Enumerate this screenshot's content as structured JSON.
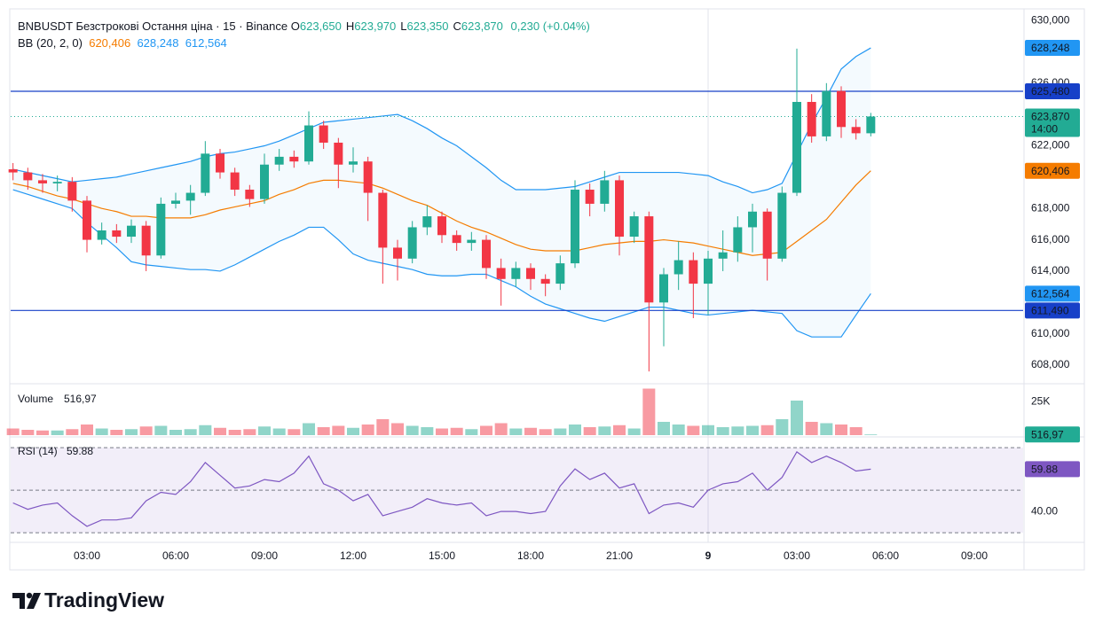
{
  "chart_data": {
    "type": "candlestick",
    "title": "BNBUSDT Безстрокові Остання ціна · 15 · Binance",
    "ohlc": [
      {
        "key": "O",
        "value": 623.65,
        "label": "623,650"
      },
      {
        "key": "H",
        "value": 623.97,
        "label": "623,970"
      },
      {
        "key": "L",
        "value": 623.35,
        "label": "623,350"
      },
      {
        "key": "C",
        "value": 623.87,
        "label": "623,870"
      }
    ],
    "change": {
      "value": 0.23,
      "label": "0,230"
    },
    "change_pct": {
      "value": 0.04,
      "label": "(+0.04%)"
    },
    "xlim": [
      0.42,
      34.65
    ],
    "ylim": [
      606.87,
      630.74
    ],
    "xticks": [
      {
        "value": 3,
        "label": "03:00"
      },
      {
        "value": 6,
        "label": "06:00"
      },
      {
        "value": 9,
        "label": "09:00"
      },
      {
        "value": 12,
        "label": "12:00"
      },
      {
        "value": 15,
        "label": "15:00"
      },
      {
        "value": 18,
        "label": "18:00"
      },
      {
        "value": 21,
        "label": "21:00"
      },
      {
        "value": 24,
        "label": "9",
        "bold": true
      },
      {
        "value": 27,
        "label": "03:00"
      },
      {
        "value": 30,
        "label": "06:00"
      },
      {
        "value": 33,
        "label": "09:00"
      }
    ],
    "yticks": [
      {
        "value": 630,
        "label": "630,000"
      },
      {
        "value": 626,
        "label": "626,000"
      },
      {
        "value": 622,
        "label": "622,000"
      },
      {
        "value": 618,
        "label": "618,000"
      },
      {
        "value": 616,
        "label": "616,000"
      },
      {
        "value": 614,
        "label": "614,000"
      },
      {
        "value": 610,
        "label": "610,000"
      },
      {
        "value": 608,
        "label": "608,000"
      }
    ],
    "up_color": "#22ab94",
    "down_color": "#f23645",
    "candles": {
      "x": [
        0.5,
        1,
        1.5,
        2,
        2.5,
        3,
        3.5,
        4,
        4.5,
        5,
        5.5,
        6,
        6.5,
        7,
        7.5,
        8,
        8.5,
        9,
        9.5,
        10,
        10.5,
        11,
        11.5,
        12,
        12.5,
        13,
        13.5,
        14,
        14.5,
        15,
        15.5,
        16,
        16.5,
        17,
        17.5,
        18,
        18.5,
        19,
        19.5,
        20,
        20.5,
        21,
        21.5,
        22,
        22.5,
        23,
        23.5,
        24,
        24.5,
        25,
        25.5,
        26,
        26.5,
        27,
        27.5,
        28,
        28.5,
        29,
        29.5
      ],
      "open": [
        620.5,
        620.3,
        619.8,
        619.6,
        619.7,
        618.5,
        616.0,
        616.6,
        616.2,
        616.9,
        615.0,
        618.3,
        618.5,
        619.0,
        621.5,
        620.3,
        619.2,
        618.6,
        620.8,
        621.3,
        621.0,
        623.3,
        622.2,
        620.8,
        621.0,
        619.0,
        615.5,
        614.8,
        616.8,
        617.5,
        616.3,
        615.8,
        616.0,
        614.2,
        613.5,
        614.2,
        613.5,
        613.2,
        614.5,
        619.2,
        618.3,
        619.8,
        616.2,
        617.5,
        612.0,
        613.8,
        614.7,
        613.2,
        614.8,
        615.2,
        616.8,
        617.8,
        614.8,
        619.0,
        624.8,
        622.6,
        625.5,
        623.2,
        622.8
      ],
      "high": [
        620.9,
        620.6,
        620.2,
        620.1,
        620.0,
        618.8,
        617.1,
        617.0,
        617.3,
        617.2,
        618.7,
        619.0,
        619.5,
        622.3,
        621.8,
        620.6,
        619.5,
        621.5,
        621.8,
        621.7,
        624.2,
        623.6,
        622.5,
        621.9,
        621.3,
        619.2,
        616.0,
        617.2,
        618.2,
        617.8,
        616.6,
        616.5,
        616.3,
        614.8,
        614.6,
        614.5,
        613.8,
        615.0,
        619.8,
        619.6,
        620.4,
        620.1,
        617.8,
        617.8,
        614.2,
        615.9,
        615.2,
        615.3,
        616.6,
        617.5,
        618.3,
        618.0,
        619.4,
        628.2,
        625.3,
        626.0,
        625.8,
        623.7,
        624.1
      ],
      "low": [
        619.8,
        619.2,
        619.0,
        619.1,
        617.8,
        615.2,
        615.7,
        615.8,
        615.8,
        614.0,
        614.8,
        618.0,
        617.6,
        618.8,
        619.9,
        618.8,
        618.1,
        618.3,
        620.4,
        620.6,
        620.8,
        621.8,
        619.3,
        620.3,
        617.2,
        613.2,
        613.4,
        614.5,
        616.3,
        615.8,
        615.3,
        615.3,
        613.5,
        611.8,
        613.0,
        612.8,
        612.4,
        612.8,
        614.2,
        617.5,
        617.8,
        615.0,
        615.8,
        607.6,
        609.2,
        612.8,
        611.0,
        611.2,
        614.0,
        614.6,
        615.2,
        613.4,
        614.6,
        618.8,
        622.2,
        622.3,
        622.5,
        622.4,
        622.6
      ],
      "close": [
        620.3,
        619.8,
        619.6,
        619.7,
        618.5,
        616.0,
        616.6,
        616.2,
        616.9,
        615.0,
        618.3,
        618.5,
        619.0,
        621.5,
        620.3,
        619.2,
        618.6,
        620.8,
        621.3,
        621.0,
        623.3,
        622.2,
        620.8,
        621.0,
        619.0,
        615.5,
        614.8,
        616.8,
        617.5,
        616.3,
        615.8,
        616.0,
        614.2,
        613.5,
        614.2,
        613.5,
        613.2,
        614.5,
        619.2,
        618.3,
        619.8,
        616.2,
        617.5,
        612.0,
        613.8,
        614.7,
        613.2,
        614.8,
        615.2,
        616.8,
        617.8,
        614.8,
        619.0,
        624.8,
        622.6,
        625.5,
        623.2,
        622.8,
        623.87
      ]
    },
    "last": {
      "value": 623.87,
      "label": "623,870",
      "countdown": "14:00"
    },
    "hlines": [
      {
        "value": 625.48,
        "label": "625,480",
        "color": "#1740c8"
      },
      {
        "value": 611.49,
        "label": "611,490",
        "color": "#1740c8"
      }
    ],
    "bb": {
      "label": "BB (20, 2, 0)",
      "basis": {
        "color": "#f57c00",
        "last": {
          "value": 620.406,
          "label": "620,406"
        },
        "values": [
          619.6,
          619.4,
          619.1,
          618.8,
          618.6,
          618.3,
          618.0,
          617.8,
          617.5,
          617.5,
          617.4,
          617.4,
          617.4,
          617.6,
          617.9,
          618.1,
          618.3,
          618.5,
          618.9,
          619.2,
          619.6,
          619.8,
          619.8,
          619.7,
          619.6,
          619.3,
          618.9,
          618.5,
          618.2,
          617.7,
          617.2,
          616.8,
          616.5,
          616.1,
          615.7,
          615.4,
          615.3,
          615.3,
          615.3,
          615.5,
          615.7,
          615.8,
          615.9,
          615.9,
          616.0,
          615.9,
          615.8,
          615.6,
          615.4,
          615.2,
          615.0,
          615.1,
          615.2,
          615.9,
          616.6,
          617.3,
          618.4,
          619.5,
          620.406
        ]
      },
      "upper": {
        "color": "#2196f3",
        "last": {
          "value": 628.248,
          "label": "628,248"
        },
        "values": [
          620.5,
          620.3,
          620.1,
          619.9,
          619.7,
          619.8,
          619.9,
          620.0,
          620.2,
          620.4,
          620.6,
          620.8,
          621.0,
          621.3,
          621.5,
          621.6,
          621.8,
          622.0,
          622.3,
          622.7,
          623.1,
          623.5,
          623.6,
          623.7,
          623.8,
          623.9,
          624.0,
          623.6,
          623.1,
          622.5,
          622.0,
          621.3,
          620.6,
          619.8,
          619.2,
          619.2,
          619.2,
          619.3,
          619.4,
          619.7,
          620.0,
          620.3,
          620.3,
          620.3,
          620.3,
          620.3,
          620.2,
          620.1,
          619.7,
          619.4,
          619.0,
          619.2,
          619.6,
          621.5,
          623.4,
          625.1,
          626.9,
          627.7,
          628.248
        ]
      },
      "lower": {
        "color": "#2196f3",
        "last": {
          "value": 612.564,
          "label": "612,564"
        },
        "values": [
          619.2,
          618.9,
          618.6,
          618.3,
          618.0,
          617.1,
          616.3,
          615.5,
          614.6,
          614.4,
          614.3,
          614.2,
          614.1,
          614.1,
          614.0,
          614.4,
          614.9,
          615.4,
          615.9,
          616.3,
          616.8,
          616.8,
          616.0,
          615.1,
          614.7,
          614.5,
          614.3,
          614.1,
          613.8,
          613.7,
          613.7,
          613.8,
          613.8,
          613.4,
          613.0,
          612.4,
          611.9,
          611.6,
          611.3,
          611.0,
          610.8,
          611.1,
          611.4,
          611.7,
          611.7,
          611.5,
          611.3,
          611.2,
          611.3,
          611.4,
          611.5,
          611.4,
          611.3,
          610.2,
          609.8,
          609.8,
          609.8,
          611.2,
          612.564
        ]
      }
    },
    "volume": {
      "label": "Volume",
      "current": {
        "value": 516.97,
        "label": "516,97"
      },
      "ylim": [
        0,
        38000
      ],
      "yticks": [
        {
          "value": 25000,
          "label": "25K"
        }
      ],
      "values": [
        5000,
        4000,
        3500,
        3500,
        4500,
        8000,
        5000,
        4000,
        4500,
        6500,
        7000,
        4000,
        4500,
        7500,
        5500,
        4000,
        4500,
        6500,
        5000,
        4500,
        9000,
        6000,
        7000,
        5500,
        8000,
        12000,
        9000,
        7000,
        6000,
        5000,
        5500,
        4500,
        7000,
        9000,
        5000,
        5500,
        4500,
        5000,
        8000,
        6000,
        6500,
        7500,
        5000,
        35000,
        10000,
        8000,
        7000,
        7500,
        6000,
        6500,
        7000,
        7500,
        12000,
        26000,
        10000,
        9000,
        8000,
        6000,
        516.97
      ]
    },
    "rsi": {
      "label": "RSI (14)",
      "color": "#7e57c2",
      "ylim": [
        26.3,
        74.2
      ],
      "yticks": [
        {
          "value": 40,
          "label": "40.00"
        }
      ],
      "levels": [
        30,
        50,
        70
      ],
      "values": [
        44,
        41,
        43,
        44,
        38,
        33,
        36,
        36,
        37,
        45,
        49,
        48,
        54,
        63,
        57,
        51,
        52,
        55,
        54,
        58,
        66,
        53,
        50,
        45,
        48,
        38,
        40,
        42,
        46,
        44,
        43,
        44,
        38,
        40,
        40,
        39,
        40,
        52,
        60,
        55,
        58,
        51,
        53,
        39,
        43,
        44,
        42,
        50,
        53,
        54,
        58,
        50,
        56,
        68,
        63,
        66,
        63,
        59,
        59.88
      ]
    }
  },
  "brand": "TradingView"
}
